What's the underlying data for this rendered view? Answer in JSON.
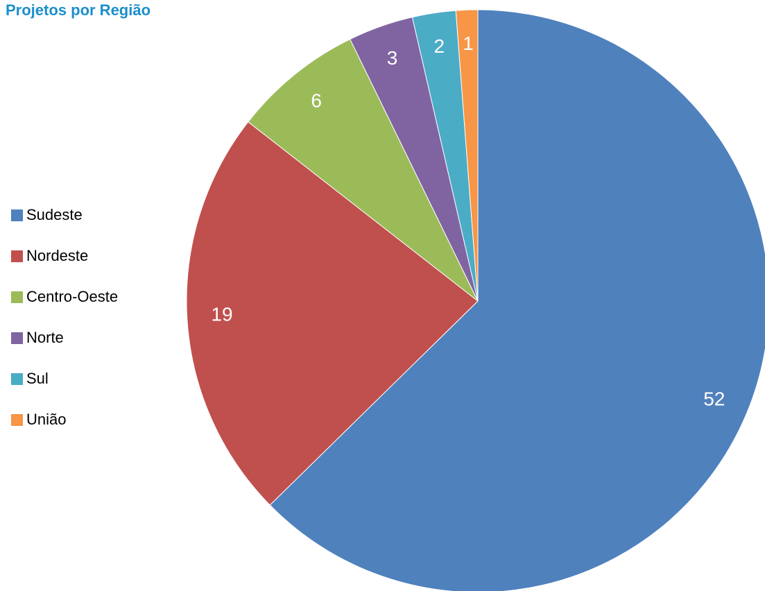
{
  "chart_data": {
    "type": "pie",
    "title": "Projetos por Região",
    "categories": [
      "Sudeste",
      "Nordeste",
      "Centro-Oeste",
      "Norte",
      "Sul",
      "União"
    ],
    "values": [
      52,
      19,
      6,
      3,
      2,
      1
    ],
    "colors": [
      "#4f81bd",
      "#c0504d",
      "#9bbb59",
      "#8064a2",
      "#4bacc6",
      "#f79646"
    ],
    "legend": "left"
  }
}
